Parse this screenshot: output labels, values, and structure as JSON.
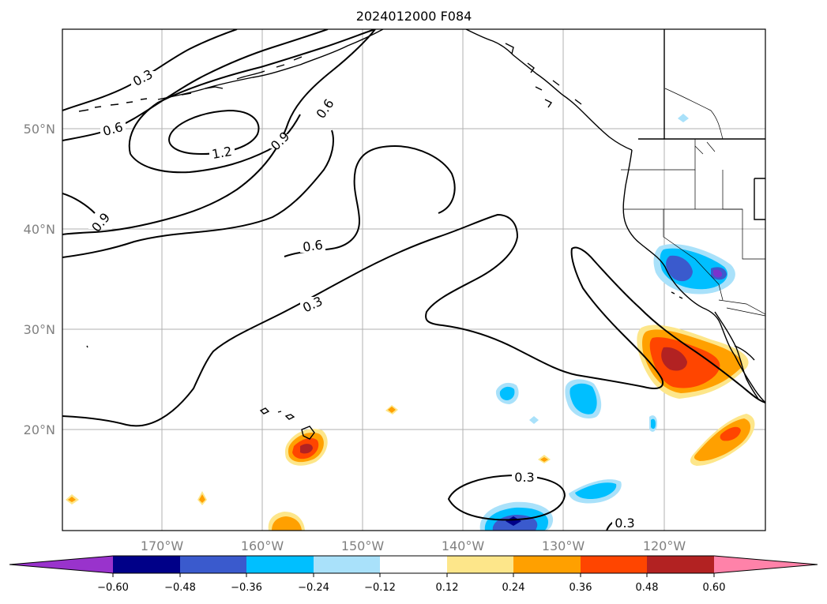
{
  "title": "2024012000 F084",
  "map": {
    "lat_labels": [
      "50°N",
      "40°N",
      "30°N",
      "20°N"
    ],
    "lon_labels": [
      "170°W",
      "160°W",
      "150°W",
      "140°W",
      "130°W",
      "120°W"
    ],
    "contour_labels": [
      "0.3",
      "0.6",
      "1.2",
      "0.9",
      "0.6",
      "0.9",
      "0.6",
      "0.3",
      "0.3",
      "0.3"
    ]
  },
  "colorbar": {
    "tick_labels": [
      "−0.60",
      "−0.48",
      "−0.36",
      "−0.24",
      "−0.12",
      "0.12",
      "0.24",
      "0.36",
      "0.48",
      "0.60"
    ],
    "colors": {
      "under": "#9933cc",
      "bins": [
        "#000088",
        "#3a5acd",
        "#00bfff",
        "#a9e1fa",
        "#ffffff",
        "#fde68a",
        "#ffa000",
        "#ff4500",
        "#b22222"
      ],
      "over": "#ff82a9"
    }
  },
  "colors": {
    "grid": "#b0b0b0",
    "land_outline": "#000000",
    "contour": "#000000"
  }
}
